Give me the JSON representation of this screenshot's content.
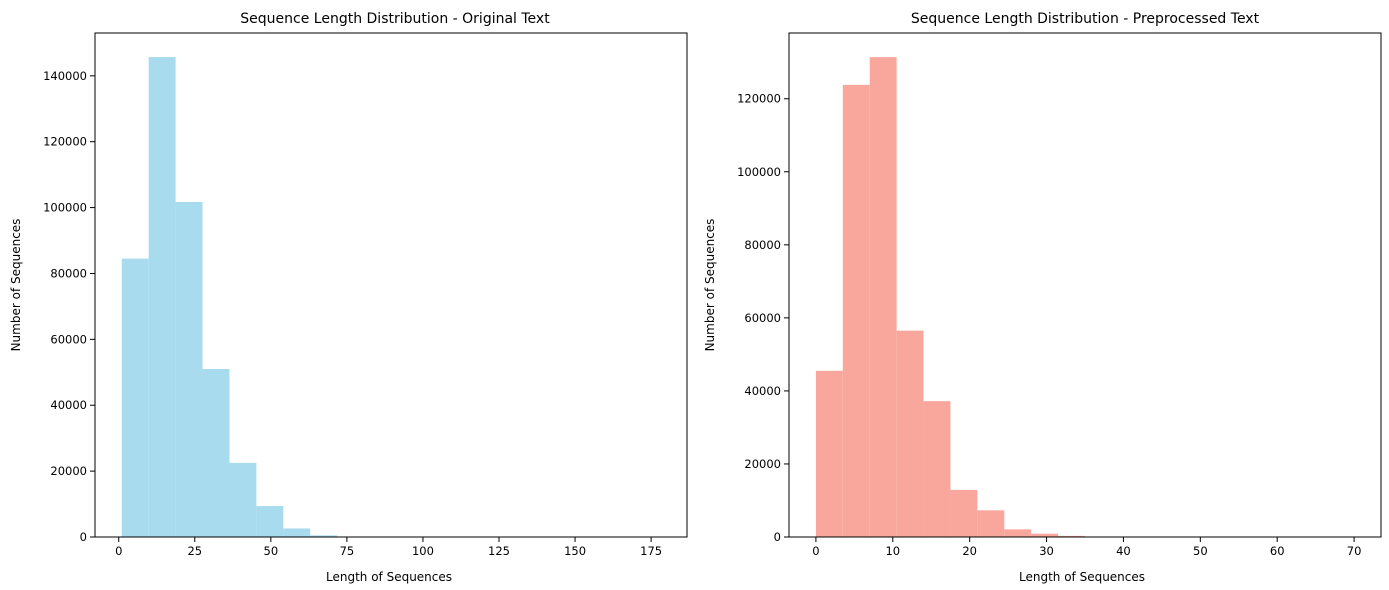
{
  "colors": {
    "left_bars": "#a8dbee",
    "right_bars": "#f9a79c",
    "axis": "#000000"
  },
  "chart_data": [
    {
      "type": "bar",
      "subtype": "histogram",
      "title": "Sequence Length Distribution - Original Text",
      "xlabel": "Length of Sequences",
      "ylabel": "Number of Sequences",
      "xlim": [
        -7.8,
        186.8
      ],
      "ylim": [
        0,
        153000
      ],
      "xticks": [
        0,
        25,
        50,
        75,
        100,
        125,
        150,
        175
      ],
      "yticks": [
        0,
        20000,
        40000,
        60000,
        80000,
        100000,
        120000,
        140000
      ],
      "bin_edges": [
        1,
        9.85,
        18.7,
        27.55,
        36.4,
        45.25,
        54.1,
        62.95,
        71.8,
        80.65,
        89.5,
        98.35,
        107.2,
        116.05,
        124.9,
        133.75,
        142.6,
        151.45,
        160.3,
        169.15,
        178
      ],
      "values": [
        84500,
        145700,
        101700,
        51000,
        22500,
        9400,
        2600,
        500,
        150,
        60,
        30,
        15,
        10,
        5,
        3,
        2,
        1,
        1,
        1,
        1
      ],
      "color": "#a8dbee",
      "grid": false
    },
    {
      "type": "bar",
      "subtype": "histogram",
      "title": "Sequence Length Distribution - Preprocessed Text",
      "xlabel": "Length of Sequences",
      "ylabel": "Number of Sequences",
      "xlim": [
        -3.5,
        73.5
      ],
      "ylim": [
        0,
        138000
      ],
      "xticks": [
        0,
        10,
        20,
        30,
        40,
        50,
        60,
        70
      ],
      "yticks": [
        0,
        20000,
        40000,
        60000,
        80000,
        100000,
        120000
      ],
      "bin_edges": [
        0,
        3.5,
        7,
        10.5,
        14,
        17.5,
        21,
        24.5,
        28,
        31.5,
        35,
        38.5,
        42,
        45.5,
        49,
        52.5,
        56,
        59.5,
        63,
        66.5,
        70
      ],
      "values": [
        45500,
        123800,
        131400,
        56500,
        37200,
        12900,
        7300,
        2100,
        900,
        300,
        100,
        40,
        20,
        10,
        5,
        3,
        2,
        1,
        1,
        1
      ],
      "color": "#f9a79c",
      "grid": false
    }
  ]
}
